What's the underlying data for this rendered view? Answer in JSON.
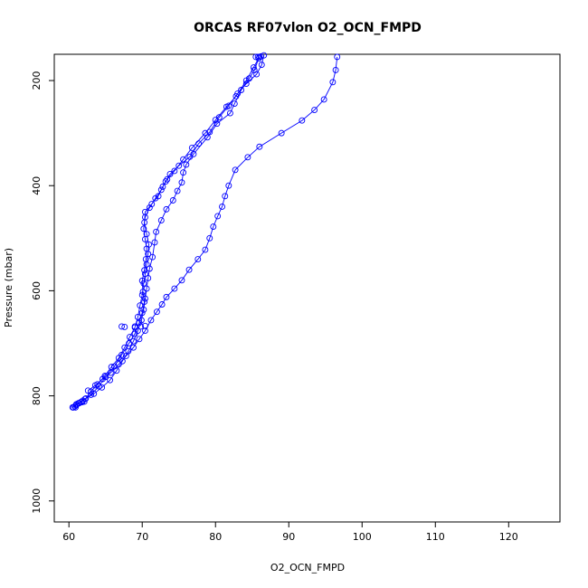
{
  "chart_data": {
    "type": "scatter",
    "title": "ORCAS RF07vlon O2_OCN_FMPD",
    "xlabel": "O2_OCN_FMPD",
    "ylabel": "Pressure (mbar)",
    "xlim": [
      58,
      127
    ],
    "ylim": [
      1040,
      150
    ],
    "y_inverted": true,
    "x_ticks": [
      60,
      70,
      80,
      90,
      100,
      110,
      120
    ],
    "y_ticks": [
      200,
      400,
      600,
      800,
      1000
    ],
    "grid": false,
    "line_color": "#0000ff",
    "marker": "open-circle",
    "series": [
      {
        "points": [
          [
            60.6,
            822
          ],
          [
            61.0,
            818
          ],
          [
            61.6,
            812
          ],
          [
            62.3,
            805
          ],
          [
            63.0,
            792
          ],
          [
            63.9,
            778
          ],
          [
            64.9,
            762
          ],
          [
            65.8,
            745
          ],
          [
            66.8,
            728
          ],
          [
            67.6,
            708
          ],
          [
            68.3,
            688
          ],
          [
            69.0,
            670
          ],
          [
            69.4,
            650
          ],
          [
            69.7,
            628
          ],
          [
            70.0,
            608
          ],
          [
            70.2,
            586
          ],
          [
            70.4,
            568
          ],
          [
            70.6,
            550
          ],
          [
            70.8,
            530
          ],
          [
            70.9,
            512
          ],
          [
            70.6,
            492
          ],
          [
            70.3,
            470
          ],
          [
            70.4,
            450
          ],
          [
            71.3,
            435
          ],
          [
            72.2,
            420
          ],
          [
            72.8,
            402
          ],
          [
            73.4,
            388
          ],
          [
            74.4,
            372
          ],
          [
            75.6,
            350
          ],
          [
            76.8,
            328
          ],
          [
            78.6,
            300
          ],
          [
            80.0,
            275
          ],
          [
            81.5,
            250
          ],
          [
            82.8,
            230
          ],
          [
            84.2,
            200
          ],
          [
            85.2,
            175
          ],
          [
            86.0,
            155
          ]
        ]
      },
      {
        "points": [
          [
            60.8,
            820
          ],
          [
            61.4,
            814
          ],
          [
            62.2,
            806
          ],
          [
            63.4,
            796
          ],
          [
            64.5,
            784
          ],
          [
            65.6,
            770
          ],
          [
            66.5,
            752
          ],
          [
            67.3,
            734
          ],
          [
            68.1,
            715
          ],
          [
            68.8,
            696
          ],
          [
            69.4,
            676
          ],
          [
            69.9,
            656
          ],
          [
            70.2,
            636
          ],
          [
            70.4,
            615
          ],
          [
            70.6,
            596
          ],
          [
            70.8,
            576
          ],
          [
            71.0,
            558
          ],
          [
            71.4,
            536
          ],
          [
            71.7,
            508
          ],
          [
            71.9,
            488
          ],
          [
            72.6,
            466
          ],
          [
            73.3,
            445
          ],
          [
            74.2,
            428
          ],
          [
            74.8,
            410
          ],
          [
            75.4,
            394
          ],
          [
            75.6,
            375
          ],
          [
            76.0,
            360
          ],
          [
            77.0,
            340
          ],
          [
            78.9,
            308
          ],
          [
            80.2,
            282
          ],
          [
            82.0,
            262
          ],
          [
            82.6,
            244
          ],
          [
            83.5,
            218
          ],
          [
            84.6,
            196
          ],
          [
            85.3,
            180
          ],
          [
            85.9,
            158
          ]
        ]
      },
      {
        "points": [
          [
            61.0,
            816
          ],
          [
            61.9,
            809
          ],
          [
            63.0,
            798
          ],
          [
            64.1,
            782
          ],
          [
            65.0,
            764
          ],
          [
            66.2,
            744
          ],
          [
            67.2,
            722
          ],
          [
            68.2,
            700
          ],
          [
            69.0,
            682
          ],
          [
            69.6,
            661
          ],
          [
            70.0,
            642
          ],
          [
            70.3,
            621
          ],
          [
            70.1,
            602
          ],
          [
            70.0,
            581
          ],
          [
            70.3,
            561
          ],
          [
            70.5,
            540
          ],
          [
            70.6,
            520
          ],
          [
            70.4,
            502
          ],
          [
            70.2,
            482
          ],
          [
            70.4,
            460
          ],
          [
            71.0,
            442
          ],
          [
            71.8,
            424
          ],
          [
            72.6,
            408
          ],
          [
            73.2,
            392
          ],
          [
            73.8,
            378
          ],
          [
            75.0,
            362
          ],
          [
            76.5,
            345
          ],
          [
            77.7,
            320
          ],
          [
            79.2,
            298
          ],
          [
            80.5,
            270
          ],
          [
            81.8,
            248
          ],
          [
            83.0,
            225
          ],
          [
            84.2,
            206
          ],
          [
            85.6,
            188
          ],
          [
            86.3,
            170
          ],
          [
            86.6,
            152
          ]
        ]
      },
      {
        "points": [
          [
            62.6,
            790
          ],
          [
            63.6,
            780
          ],
          [
            64.6,
            768
          ],
          [
            65.7,
            756
          ],
          [
            66.8,
            740
          ],
          [
            67.8,
            724
          ],
          [
            68.8,
            708
          ],
          [
            69.6,
            692
          ],
          [
            70.4,
            676
          ],
          [
            71.2,
            656
          ],
          [
            72.0,
            640
          ],
          [
            72.7,
            626
          ],
          [
            73.3,
            612
          ],
          [
            74.4,
            596
          ],
          [
            75.4,
            580
          ],
          [
            76.4,
            560
          ],
          [
            77.6,
            540
          ],
          [
            78.6,
            522
          ],
          [
            79.2,
            500
          ],
          [
            79.7,
            478
          ],
          [
            80.3,
            458
          ],
          [
            80.9,
            440
          ],
          [
            81.3,
            420
          ],
          [
            81.8,
            400
          ],
          [
            82.7,
            370
          ],
          [
            84.4,
            346
          ],
          [
            86.0,
            326
          ],
          [
            89.0,
            300
          ],
          [
            91.8,
            276
          ],
          [
            93.5,
            256
          ],
          [
            94.8,
            236
          ],
          [
            96.0,
            203
          ],
          [
            96.4,
            180
          ],
          [
            96.6,
            155
          ]
        ]
      }
    ],
    "highlight_clusters": [
      {
        "label": "",
        "points": [
          [
            67.2,
            668
          ],
          [
            67.6,
            669
          ],
          [
            69.0,
            668
          ],
          [
            69.8,
            668
          ],
          [
            70.4,
            667
          ]
        ]
      },
      {
        "label": "",
        "points": [
          [
            60.5,
            822
          ],
          [
            60.9,
            822
          ],
          [
            61.3,
            814
          ],
          [
            61.8,
            812
          ],
          [
            62.1,
            811
          ]
        ]
      },
      {
        "label": "",
        "points": [
          [
            85.5,
            155
          ],
          [
            85.8,
            155
          ],
          [
            86.2,
            154
          ]
        ]
      }
    ]
  }
}
